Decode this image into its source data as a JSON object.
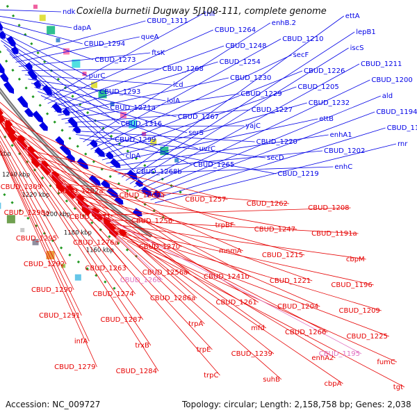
{
  "title": "Coxiella burnetii Dugway 5J108-111, complete genome",
  "footer": {
    "accession": "Accession: NC_009727",
    "summary": "Topology: circular; Length: 2,158,758 bp; Genes: 2,038"
  },
  "colors": {
    "forward": "#0000e6",
    "reverse": "#e60000",
    "pink": "#e070c0",
    "backbone": "#808080",
    "tick": "#229922"
  },
  "scale": [
    "1340 kbp",
    "1320 kbp",
    "1300 kbp",
    "1280 kbp",
    "1260 kbp",
    "1240 kbp",
    "1220 kbp",
    "1200 kbp",
    "1180 kbp",
    "1160 kbp"
  ],
  "forward_labels": [
    "ndk",
    "dapA",
    "CBUD_1294",
    "CBUD_1273",
    "purC",
    "CBUD_1293",
    "CBUD_1271a",
    "CBUD_1316",
    "CBUD_1299",
    "clpA",
    "CBUD_1268b",
    "CBUD_1311",
    "queA",
    "ftsK",
    "CBUD_1268",
    "icd",
    "lolA",
    "CBUD_1267",
    "serS",
    "uvrC",
    "CBUD_1265",
    "thiI",
    "CBUD_1264",
    "CBUD_1248",
    "CBUD_1254",
    "CBUD_1230",
    "CBUD_1229",
    "CBUD_1227",
    "yajC",
    "CBUD_1220",
    "secD",
    "CBUD_1219",
    "enhB.2",
    "CBUD_1210",
    "secF",
    "CBUD_1226",
    "CBUD_1205",
    "CBUD_1232",
    "ettB",
    "enhA1",
    "CBUD_1202",
    "enhC",
    "ettA",
    "lepB1",
    "iscS",
    "CBUD_1211",
    "CBUD_1200",
    "ald",
    "CBUD_1194",
    "CBUD_1193",
    "rnr"
  ],
  "reverse_labels": [
    "CBUD_1309",
    "CBUD_1298a",
    "CBUD_1295",
    "CBUD_1292",
    "CBUD_1290",
    "CBUD_1291",
    "infA",
    "CBUD_1279",
    "CBUD_1282a",
    "CBUD_1271",
    "CBUD_1276a",
    "CBUD_1263",
    "CBUD_1274",
    "CBUD_1287",
    "trxB",
    "CBUD_1284",
    "CBUD_1268a",
    "CBUD_1256",
    "CBUD_1270",
    "CBUD_1256a",
    "CBUD_1286a",
    "trpA",
    "trpE",
    "trpC",
    "CBUD_1257",
    "trpBF",
    "mnmA",
    "CBUD_1241b",
    "CBUD_1261",
    "mfd",
    "CBUD_1239",
    "suhB",
    "CBUD_1262",
    "CBUD_1247",
    "CBUD_1215",
    "CBUD_1221",
    "CBUD_1204",
    "CBUD_1266",
    "enhA2",
    "cbpA",
    "CBUD_1208",
    "CBUD_1191a",
    "cbpM",
    "CBUD_1196",
    "CBUD_1209",
    "CBUD_1225",
    "fumC",
    "tgt"
  ],
  "pink_labels": [
    "CBUD_1260",
    "CBUD_1195"
  ]
}
